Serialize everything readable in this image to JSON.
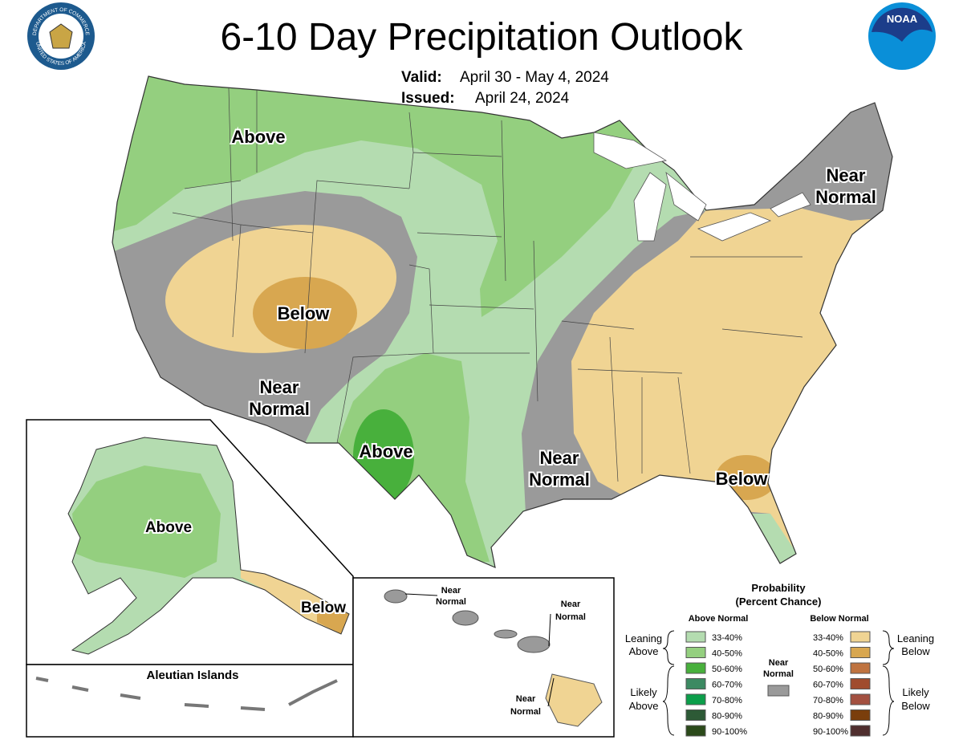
{
  "header": {
    "title": "6-10 Day Precipitation Outlook",
    "valid_label": "Valid:",
    "valid": "April 30 - May 4, 2024",
    "issued_label": "Issued:",
    "issued": "April 24, 2024",
    "noaa": "NOAA",
    "seal_top": "DEPARTMENT OF COMMERCE",
    "seal_bottom": "UNITED STATES OF AMERICA"
  },
  "conus_labels": {
    "above_nw": "Above",
    "below_west": "Below",
    "near_sw": [
      "Near",
      "Normal"
    ],
    "above_tx": "Above",
    "near_ms": [
      "Near",
      "Normal"
    ],
    "below_se": "Below",
    "near_ne": [
      "Near",
      "Normal"
    ]
  },
  "alaska_labels": {
    "above": "Above",
    "below": "Below",
    "aleutian": "Aleutian Islands"
  },
  "hawaii_labels": {
    "kauai": [
      "Near",
      "Normal"
    ],
    "maui": [
      "Near",
      "Normal"
    ],
    "big_island": [
      "Near",
      "Normal"
    ]
  },
  "legend": {
    "title": [
      "Probability",
      "(Percent Chance)"
    ],
    "above_heading": "Above Normal",
    "below_heading": "Below Normal",
    "above": [
      {
        "range": "33-40%",
        "color": "#b4dcb0"
      },
      {
        "range": "40-50%",
        "color": "#94cf7f"
      },
      {
        "range": "50-60%",
        "color": "#48b03c"
      },
      {
        "range": "60-70%",
        "color": "#3c8a62"
      },
      {
        "range": "70-80%",
        "color": "#0b9e4a"
      },
      {
        "range": "80-90%",
        "color": "#2d5a36"
      },
      {
        "range": "90-100%",
        "color": "#2b4a1a"
      }
    ],
    "below": [
      {
        "range": "33-40%",
        "color": "#f0d493"
      },
      {
        "range": "40-50%",
        "color": "#d8a750"
      },
      {
        "range": "50-60%",
        "color": "#bf7340"
      },
      {
        "range": "60-70%",
        "color": "#a04c2e"
      },
      {
        "range": "70-80%",
        "color": "#a35040"
      },
      {
        "range": "80-90%",
        "color": "#7a3e0c"
      },
      {
        "range": "90-100%",
        "color": "#4f2e2e"
      }
    ],
    "near": {
      "label": [
        "Near",
        "Normal"
      ],
      "color": "#9a9a9a"
    },
    "leaning_above": [
      "Leaning",
      "Above"
    ],
    "likely_above": [
      "Likely",
      "Above"
    ],
    "leaning_below": [
      "Leaning",
      "Below"
    ],
    "likely_below": [
      "Likely",
      "Below"
    ]
  }
}
